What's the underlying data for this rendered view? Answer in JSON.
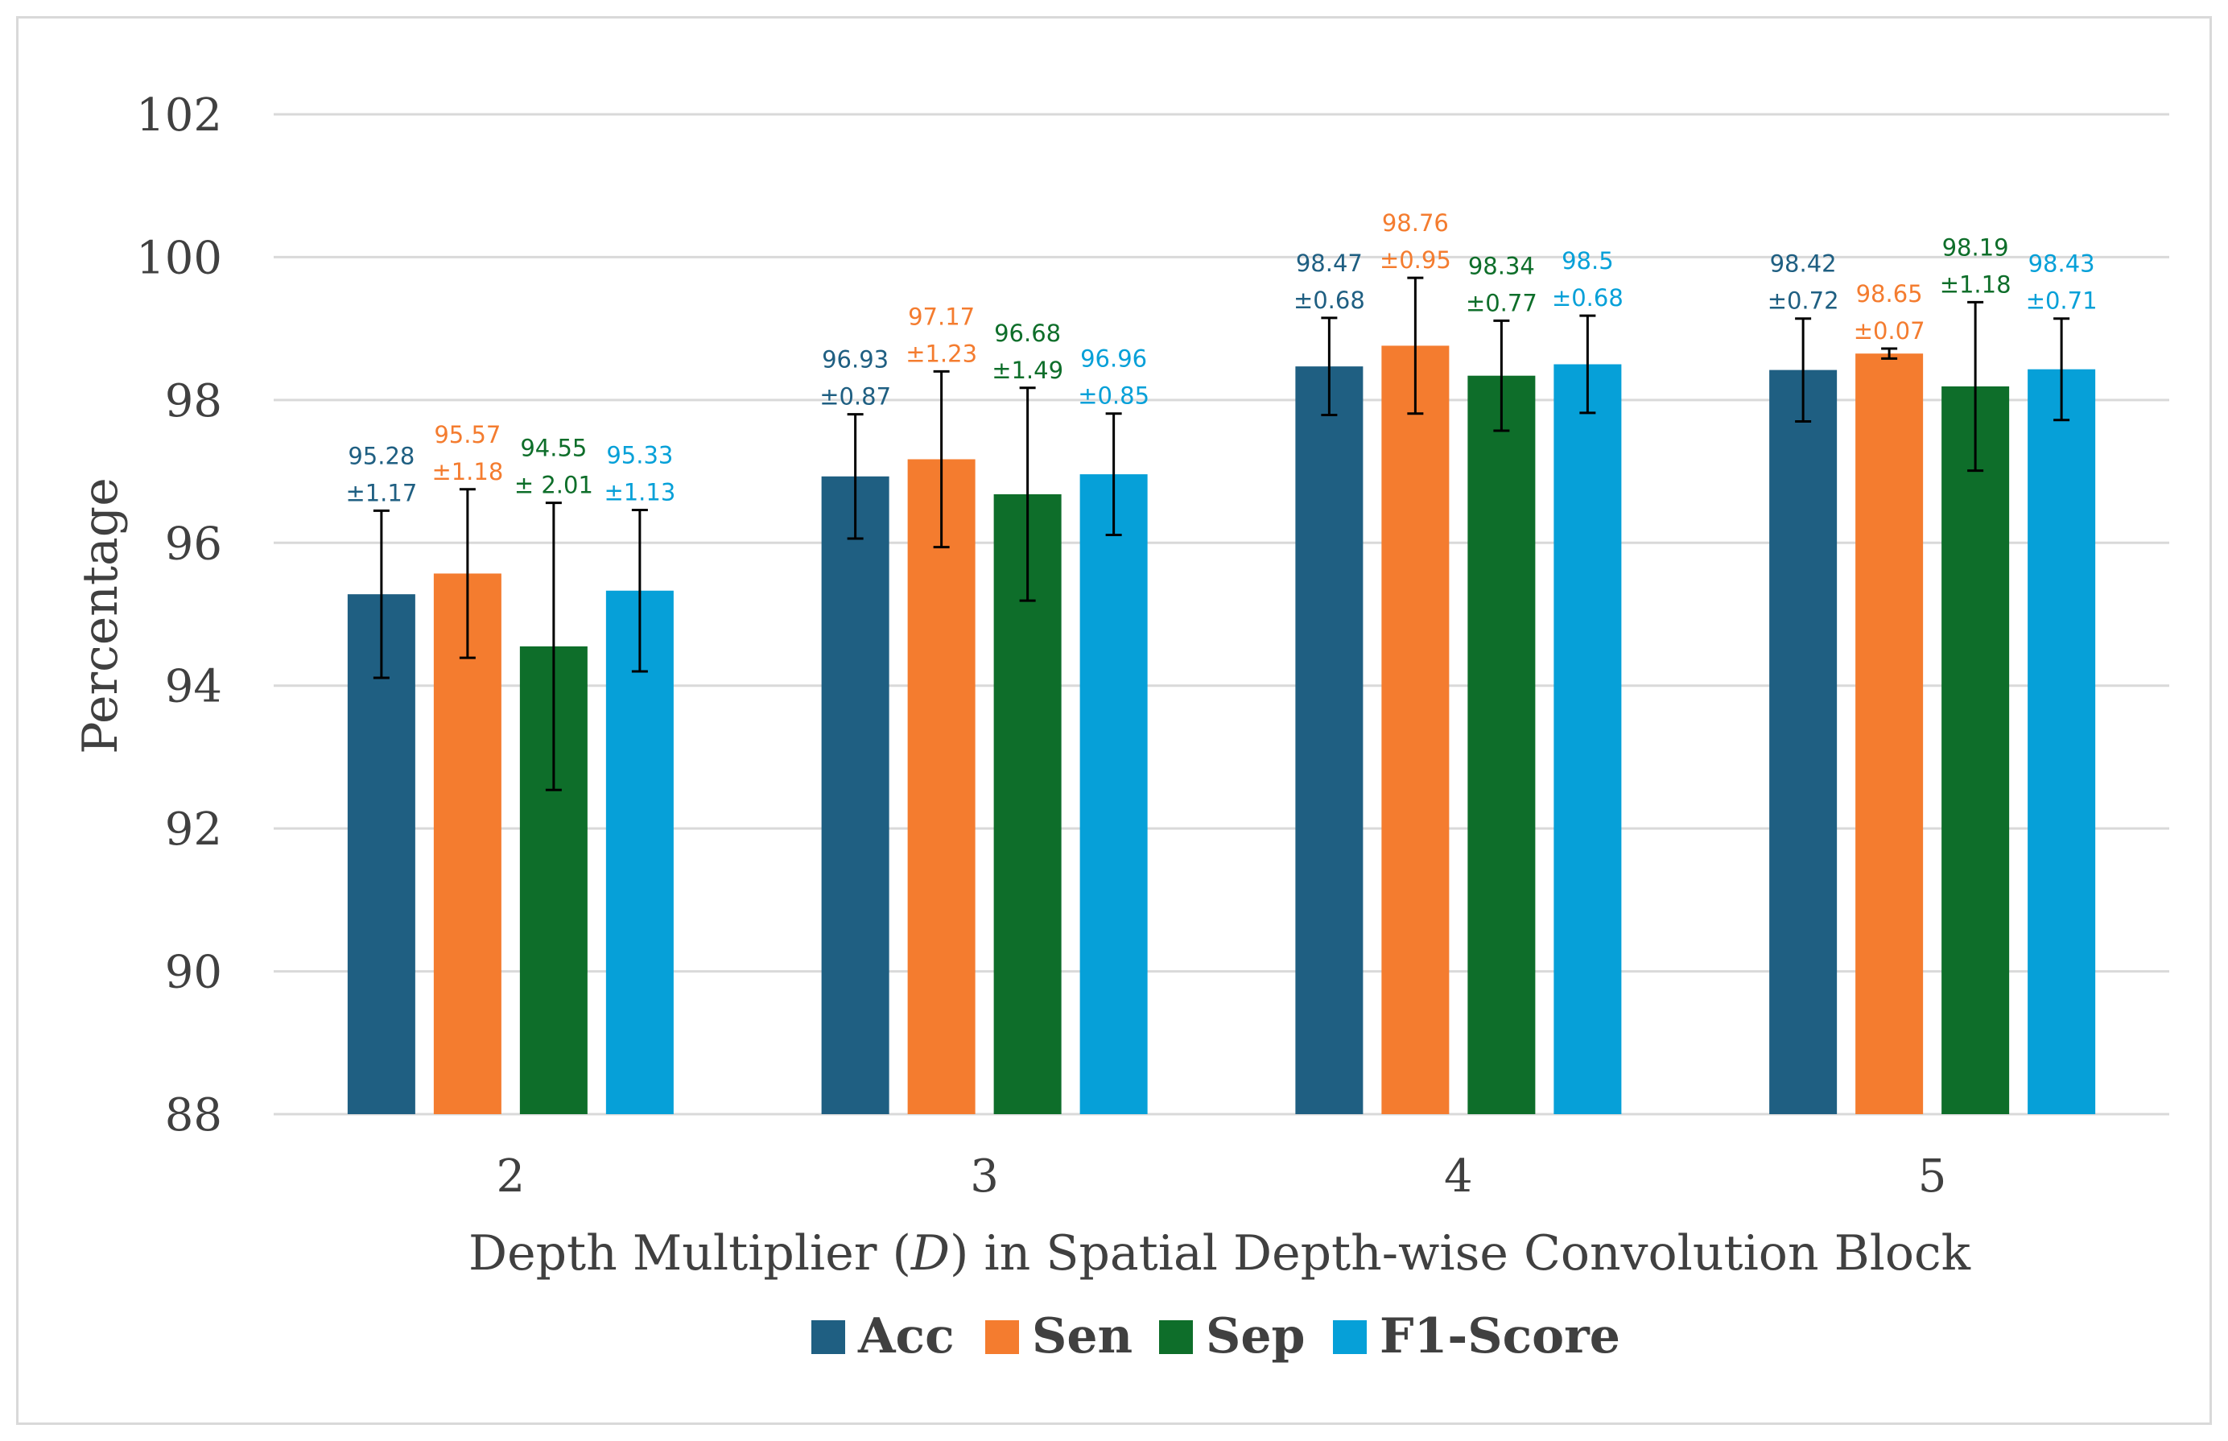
{
  "chart_data": {
    "type": "bar",
    "title": "",
    "xlabel_parts": [
      "Depth Multiplier (",
      "D",
      ") in Spatial Depth-wise Convolution Block"
    ],
    "ylabel": "Percentage",
    "ylim": [
      88,
      102
    ],
    "yticks": [
      "88",
      "90",
      "92",
      "94",
      "96",
      "98",
      "100",
      "102"
    ],
    "categories": [
      "2",
      "3",
      "4",
      "5"
    ],
    "grid": true,
    "legend_position": "bottom",
    "series": [
      {
        "name": "Acc",
        "color": "#1f5f82",
        "values": [
          95.28,
          96.93,
          98.47,
          98.42
        ],
        "errors": [
          1.17,
          0.87,
          0.68,
          0.72
        ],
        "label_values": [
          "95.28",
          "96.93",
          "98.47",
          "98.42"
        ],
        "label_errors": [
          "±1.17",
          "±0.87",
          "±0.68",
          "±0.72"
        ]
      },
      {
        "name": "Sen",
        "color": "#f47c2f",
        "values": [
          95.57,
          97.17,
          98.76,
          98.65
        ],
        "errors": [
          1.18,
          1.23,
          0.95,
          0.07
        ],
        "label_values": [
          "95.57",
          "97.17",
          "98.76",
          "98.65"
        ],
        "label_errors": [
          "±1.18",
          "±1.23",
          "±0.95",
          "±0.07"
        ]
      },
      {
        "name": "Sep",
        "color": "#0e6e2a",
        "values": [
          94.55,
          96.68,
          98.34,
          98.19
        ],
        "errors": [
          2.01,
          1.49,
          0.77,
          1.18
        ],
        "label_values": [
          "94.55",
          "96.68",
          "98.34",
          "98.19"
        ],
        "label_errors": [
          "± 2.01",
          "±1.49",
          "±0.77",
          "±1.18"
        ]
      },
      {
        "name": "F1-Score",
        "color": "#06a0d8",
        "values": [
          95.33,
          96.96,
          98.5,
          98.43
        ],
        "errors": [
          1.13,
          0.85,
          0.68,
          0.71
        ],
        "label_values": [
          "95.33",
          "96.96",
          "98.5",
          "98.43"
        ],
        "label_errors": [
          "±1.13",
          "±0.85",
          "±0.68",
          "±0.71"
        ]
      }
    ]
  }
}
